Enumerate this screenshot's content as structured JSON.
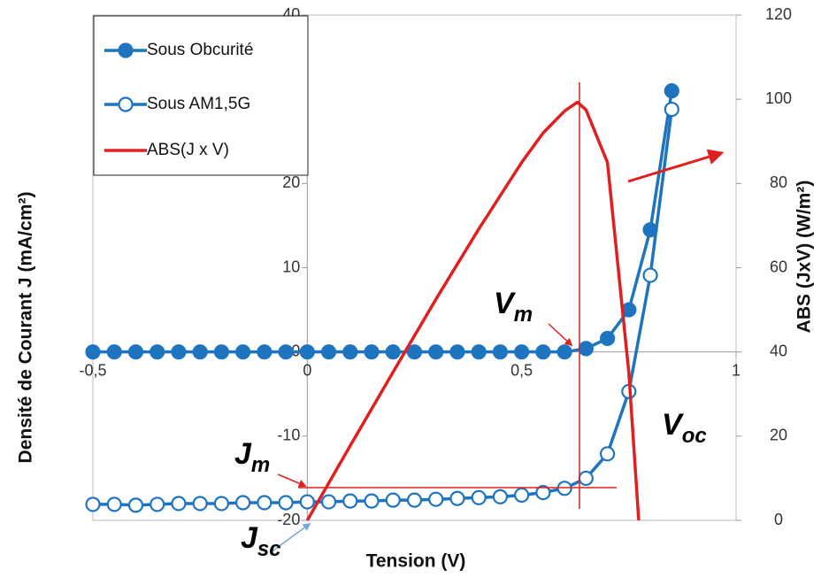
{
  "chart_data": {
    "type": "line",
    "x_label": "Tension (V)",
    "y_label": "Densité de Courant J (mA/cm²)",
    "y2_label": "ABS (JxV) (W/m²)",
    "xlim": [
      -0.5,
      1
    ],
    "xticks": [
      {
        "value": -0.5,
        "label": "-0,5"
      },
      0,
      {
        "value": 0.5,
        "label": "0,5"
      },
      1
    ],
    "ylim": [
      -20,
      40
    ],
    "yticks": [
      -20,
      -10,
      0,
      10,
      20,
      30,
      40
    ],
    "y2lim": [
      0,
      120
    ],
    "y2ticks": [
      0,
      20,
      40,
      60,
      80,
      100,
      120
    ],
    "grid": false,
    "legend": "top-left",
    "series": [
      {
        "name": "Sous Obcurité",
        "color": "#1f74bf",
        "marker": "filled",
        "x": [
          -0.5,
          -0.45,
          -0.4,
          -0.35,
          -0.3,
          -0.25,
          -0.2,
          -0.15,
          -0.1,
          -0.05,
          0,
          0.05,
          0.1,
          0.15,
          0.2,
          0.25,
          0.3,
          0.35,
          0.4,
          0.45,
          0.5,
          0.55,
          0.6,
          0.65,
          0.7,
          0.75,
          0.8,
          0.85
        ],
        "values": [
          0,
          0,
          0,
          0,
          0,
          0,
          0,
          0,
          0,
          0,
          0,
          0,
          0,
          0,
          0,
          0,
          0,
          0,
          0,
          0,
          0,
          0,
          0,
          0.4,
          1.6,
          5.0,
          14.5,
          31.0
        ]
      },
      {
        "name": "Sous AM1,5G",
        "color": "#1f74bf",
        "marker": "hollow",
        "x": [
          -0.5,
          -0.45,
          -0.4,
          -0.35,
          -0.3,
          -0.25,
          -0.2,
          -0.15,
          -0.1,
          -0.05,
          0,
          0.05,
          0.1,
          0.15,
          0.2,
          0.25,
          0.3,
          0.35,
          0.4,
          0.45,
          0.5,
          0.55,
          0.6,
          0.65,
          0.7,
          0.75,
          0.8,
          0.85
        ],
        "values": [
          -18.1,
          -18.1,
          -18.2,
          -18.1,
          -18.0,
          -18.0,
          -18.0,
          -17.9,
          -17.9,
          -17.9,
          -17.8,
          -17.8,
          -17.7,
          -17.7,
          -17.6,
          -17.6,
          -17.5,
          -17.4,
          -17.3,
          -17.2,
          -17.0,
          -16.7,
          -16.2,
          -15.0,
          -12.1,
          -4.7,
          9.1,
          28.8
        ]
      },
      {
        "name": "ABS(J x V)",
        "color": "#e02020",
        "marker": "none",
        "axis": "y2",
        "x": [
          0,
          0.1,
          0.2,
          0.3,
          0.4,
          0.5,
          0.55,
          0.6,
          0.63,
          0.65,
          0.7,
          0.75,
          0.773
        ],
        "values": [
          0,
          17.7,
          35.2,
          52.5,
          69.2,
          85,
          92,
          97.2,
          99.3,
          97.5,
          85,
          35,
          0
        ]
      }
    ],
    "annotations": [
      {
        "text": "V",
        "sub": "m"
      },
      {
        "text": "V",
        "sub": "oc"
      },
      {
        "text": "J",
        "sub": "m"
      },
      {
        "text": "J",
        "sub": "sc"
      }
    ]
  }
}
